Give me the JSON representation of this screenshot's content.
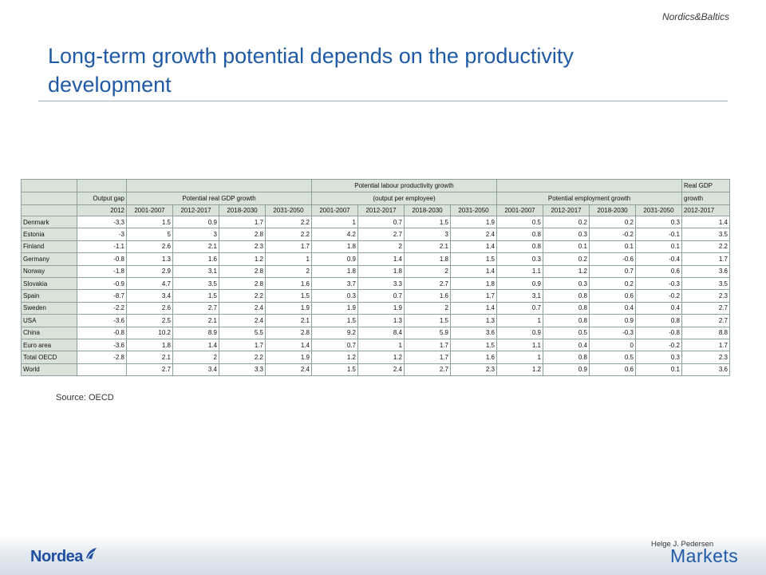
{
  "header": {
    "tag": "Nordics&Baltics",
    "title": "Long-term growth potential depends on the productivity development"
  },
  "table": {
    "groups": {
      "output_gap": "Output gap",
      "real_gdp": "Potential real GDP growth",
      "labour_line1": "Potential labour productivity growth",
      "labour_line2": "(output per employee)",
      "employment": "Potential employment growth",
      "real_gdp_short_1": "Real GDP",
      "real_gdp_short_2": "growth"
    },
    "periods": [
      "2012",
      "2001-2007",
      "2012-2017",
      "2018-2030",
      "2031-2050",
      "2001-2007",
      "2012-2017",
      "2018-2030",
      "2031-2050",
      "2001-2007",
      "2012-2017",
      "2018-2030",
      "2031-2050",
      "2012-2017"
    ],
    "rows": [
      {
        "country": "Denmark",
        "values": [
          "-3.3",
          "1.5",
          "0.9",
          "1.7",
          "2.2",
          "1",
          "0.7",
          "1.5",
          "1.9",
          "0.5",
          "0.2",
          "0.2",
          "0.3",
          "1.4"
        ]
      },
      {
        "country": "Estonia",
        "values": [
          "-3",
          "5",
          "3",
          "2.8",
          "2.2",
          "4.2",
          "2.7",
          "3",
          "2.4",
          "0.8",
          "0.3",
          "-0.2",
          "-0.1",
          "3.5"
        ]
      },
      {
        "country": "Finland",
        "values": [
          "-1.1",
          "2.6",
          "2.1",
          "2.3",
          "1.7",
          "1.8",
          "2",
          "2.1",
          "1.4",
          "0.8",
          "0.1",
          "0.1",
          "0.1",
          "2.2"
        ]
      },
      {
        "country": "Germany",
        "values": [
          "-0.8",
          "1.3",
          "1.6",
          "1.2",
          "1",
          "0.9",
          "1.4",
          "1.8",
          "1.5",
          "0.3",
          "0.2",
          "-0.6",
          "-0.4",
          "1.7"
        ]
      },
      {
        "country": "Norway",
        "values": [
          "-1.8",
          "2.9",
          "3.1",
          "2.8",
          "2",
          "1.8",
          "1.8",
          "2",
          "1.4",
          "1.1",
          "1.2",
          "0.7",
          "0.6",
          "3.6"
        ]
      },
      {
        "country": "Slovakia",
        "values": [
          "-0.9",
          "4.7",
          "3.5",
          "2.8",
          "1.6",
          "3.7",
          "3.3",
          "2.7",
          "1.8",
          "0.9",
          "0.3",
          "0.2",
          "-0.3",
          "3.5"
        ]
      },
      {
        "country": "Spain",
        "values": [
          "-8.7",
          "3.4",
          "1.5",
          "2.2",
          "1.5",
          "0.3",
          "0.7",
          "1.6",
          "1.7",
          "3.1",
          "0.8",
          "0.6",
          "-0.2",
          "2.3"
        ]
      },
      {
        "country": "Sweden",
        "values": [
          "-2.2",
          "2.6",
          "2.7",
          "2.4",
          "1.9",
          "1.9",
          "1.9",
          "2",
          "1.4",
          "0.7",
          "0.8",
          "0.4",
          "0.4",
          "2.7"
        ]
      },
      {
        "country": "USA",
        "values": [
          "-3.6",
          "2.5",
          "2.1",
          "2.4",
          "2.1",
          "1.5",
          "1.3",
          "1.5",
          "1.3",
          "1",
          "0.8",
          "0.9",
          "0.8",
          "2.7"
        ]
      },
      {
        "country": "China",
        "values": [
          "-0.8",
          "10.2",
          "8.9",
          "5.5",
          "2.8",
          "9.2",
          "8.4",
          "5.9",
          "3.6",
          "0.9",
          "0.5",
          "-0.3",
          "-0.8",
          "8.8"
        ]
      },
      {
        "country": "Euro area",
        "values": [
          "-3.6",
          "1.8",
          "1.4",
          "1.7",
          "1.4",
          "0.7",
          "1",
          "1.7",
          "1.5",
          "1.1",
          "0.4",
          "0",
          "-0.2",
          "1.7"
        ]
      },
      {
        "country": "Total OECD",
        "values": [
          "-2.8",
          "2.1",
          "2",
          "2.2",
          "1.9",
          "1.2",
          "1.2",
          "1.7",
          "1.6",
          "1",
          "0.8",
          "0.5",
          "0.3",
          "2.3"
        ]
      },
      {
        "country": "World",
        "values": [
          "",
          "2.7",
          "3.4",
          "3.3",
          "2.4",
          "1.5",
          "2.4",
          "2.7",
          "2.3",
          "1.2",
          "0.9",
          "0.6",
          "0.1",
          "3.6"
        ]
      }
    ]
  },
  "source": "Source: OECD",
  "footer": {
    "logo": "Nordea",
    "author": "Helge J. Pedersen",
    "brand": "Markets"
  },
  "colors": {
    "title": "#1f5aa6",
    "header_fill": "#d9e3d9",
    "logo": "#1f4ea3"
  }
}
